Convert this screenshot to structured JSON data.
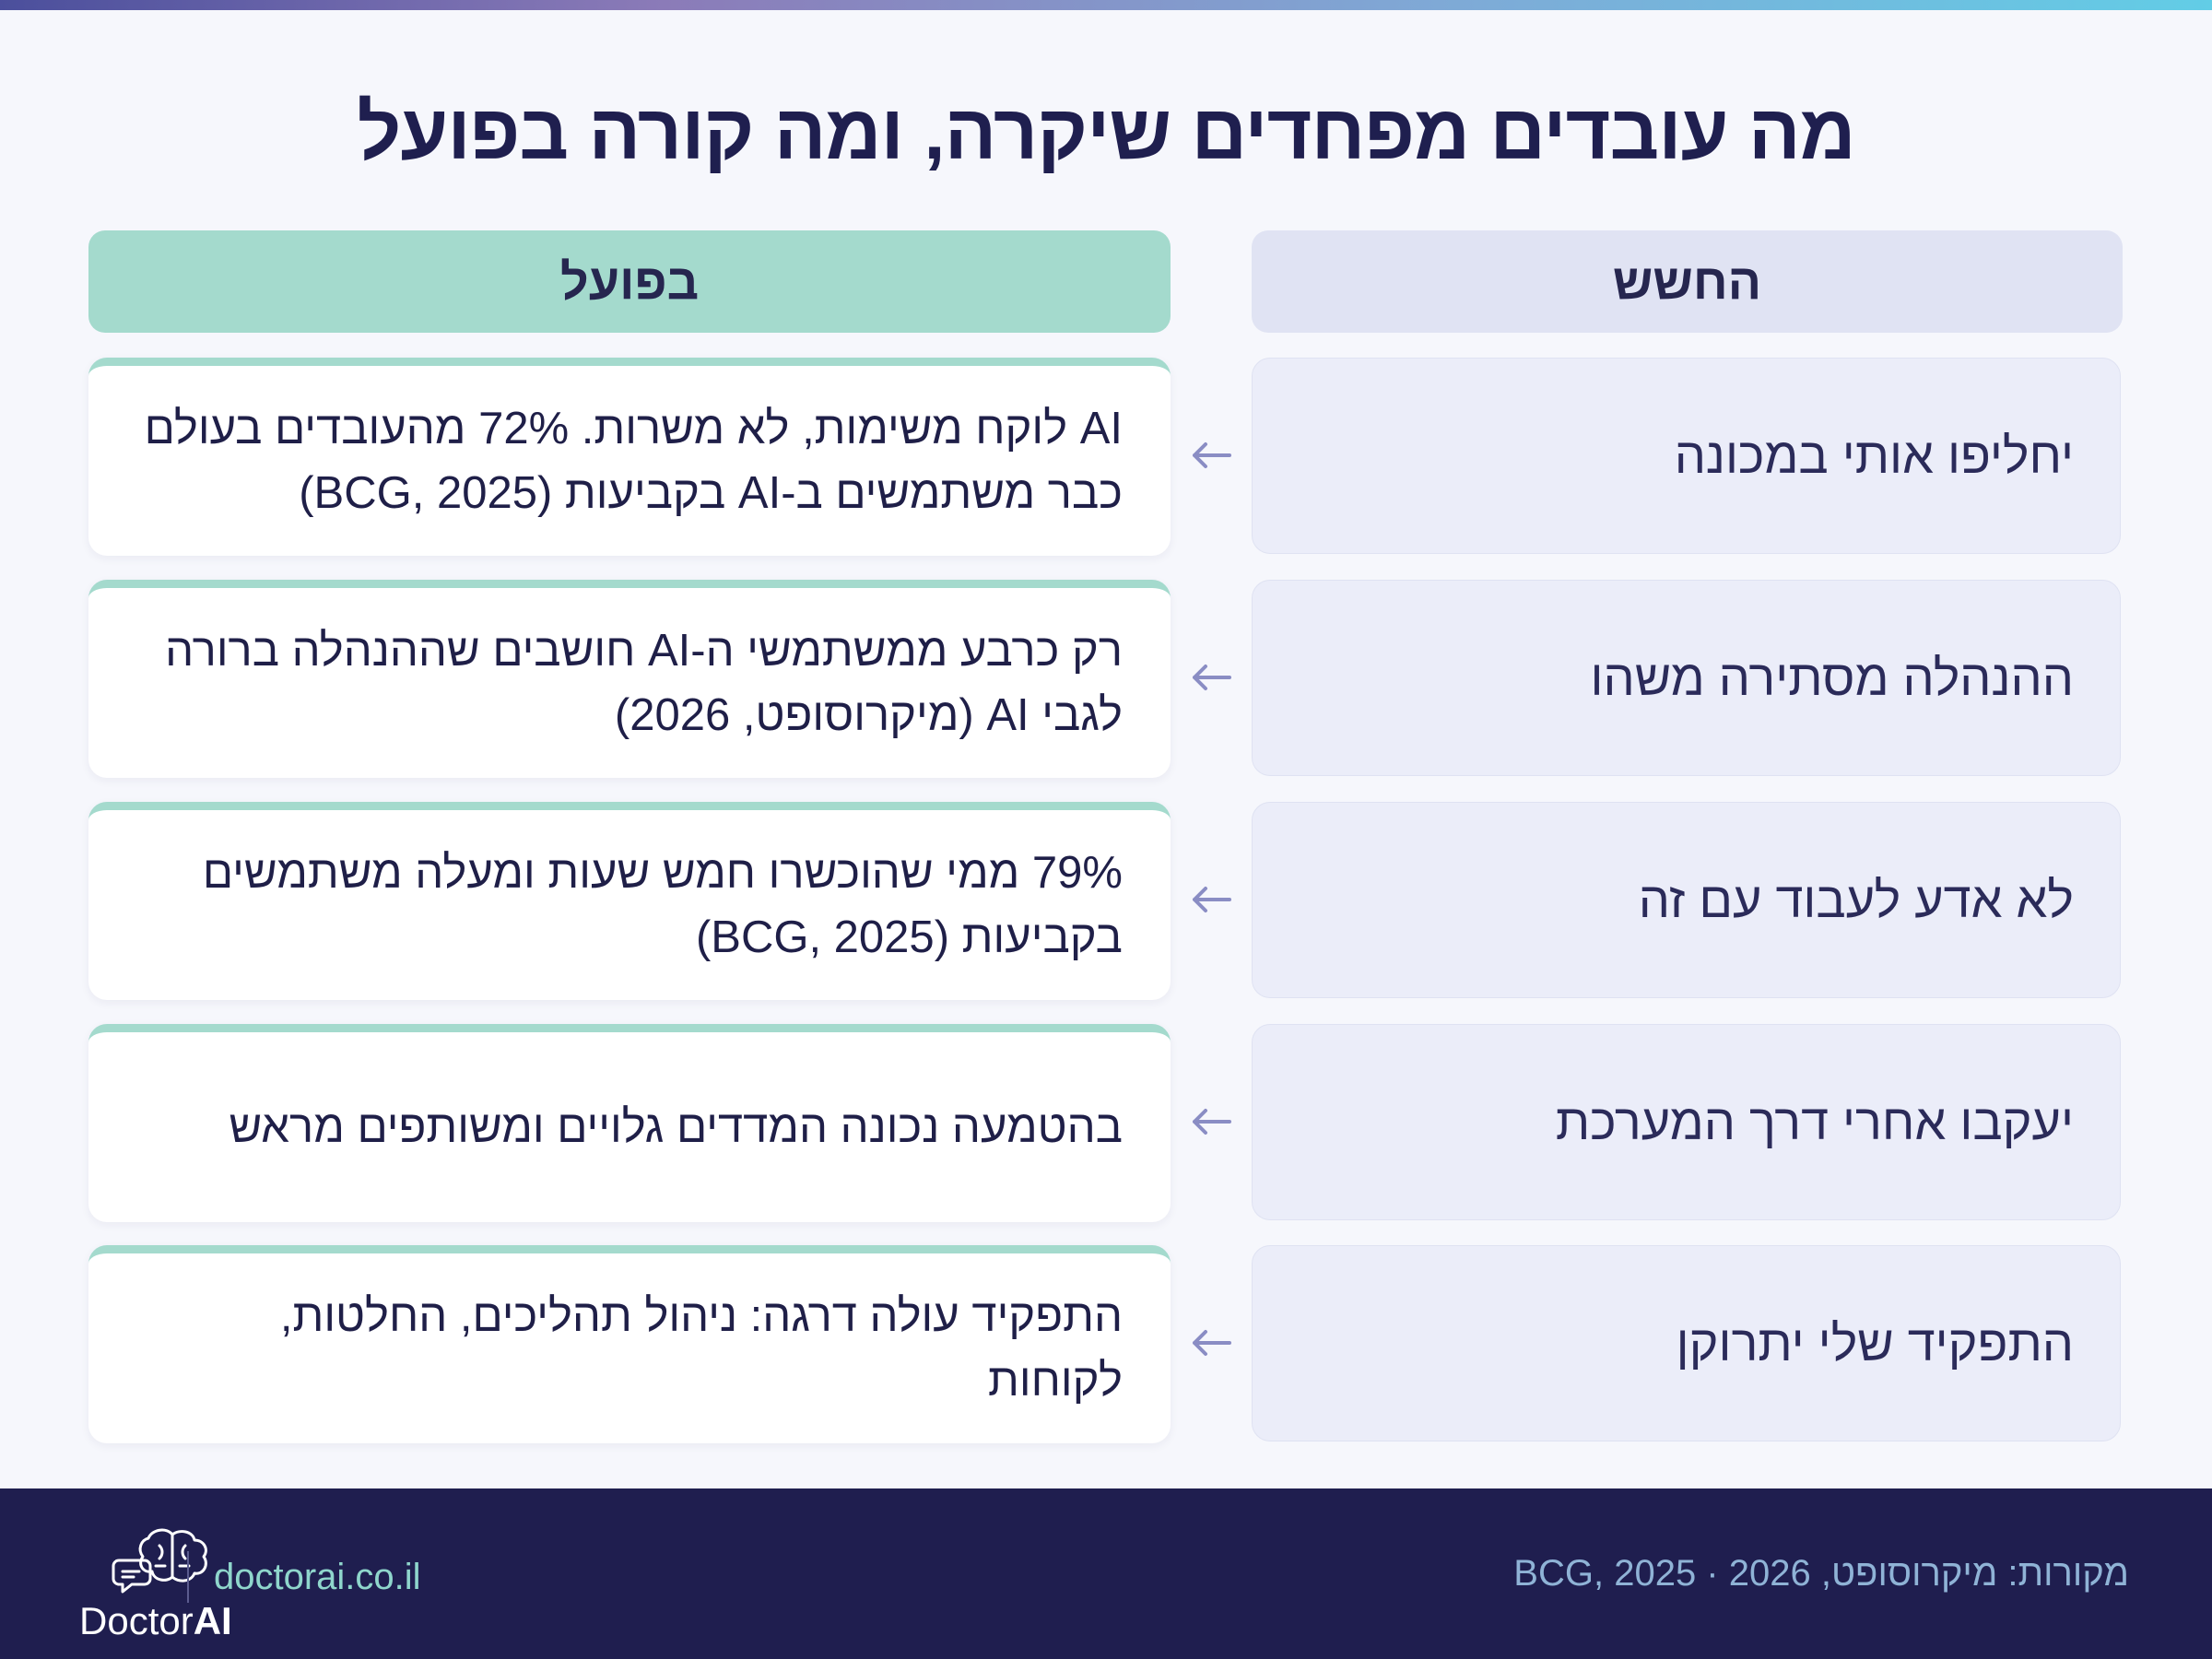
{
  "title": "מה עובדים מפחדים שיקרה, ומה קורה בפועל",
  "columns": {
    "fear": "החשש",
    "reality": "בפועל"
  },
  "rows": [
    {
      "fear": "יחליפו אותי במכונה",
      "reality": "AI לוקח משימות, לא משרות. 72% מהעובדים בעולם כבר משתמשים ב-AI בקביעות (BCG, 2025)"
    },
    {
      "fear": "ההנהלה מסתירה משהו",
      "reality": "רק כרבע ממשתמשי ה-AI חושבים שההנהלה ברורה לגבי AI (מיקרוסופט, 2026)"
    },
    {
      "fear": "לא אדע לעבוד עם זה",
      "reality": "79% ממי שהוכשרו חמש שעות ומעלה משתמשים בקביעות (BCG, 2025)"
    },
    {
      "fear": "יעקבו אחרי דרך המערכת",
      "reality": "בהטמעה נכונה המדדים גלויים ומשותפים מראש"
    },
    {
      "fear": "התפקיד שלי יתרוקן",
      "reality": "התפקיד עולה דרגה: ניהול תהליכים, החלטות, לקוחות"
    }
  ],
  "footer": {
    "sources": "מקורות: מיקרוסופט, 2026 · BCG, 2025",
    "brand_plain": "Doctor",
    "brand_bold": "AI",
    "site": "doctorai.co.il"
  },
  "icons": {
    "row_arrow": "arrow-left-icon",
    "logo": "brain-chat-icon"
  },
  "colors": {
    "title": "#1f1f4f",
    "fear_header": "#e0e3f3",
    "reality_header": "#a4dacd",
    "footer_bg": "#1f1e4f",
    "arrow": "#8a8dc4"
  }
}
